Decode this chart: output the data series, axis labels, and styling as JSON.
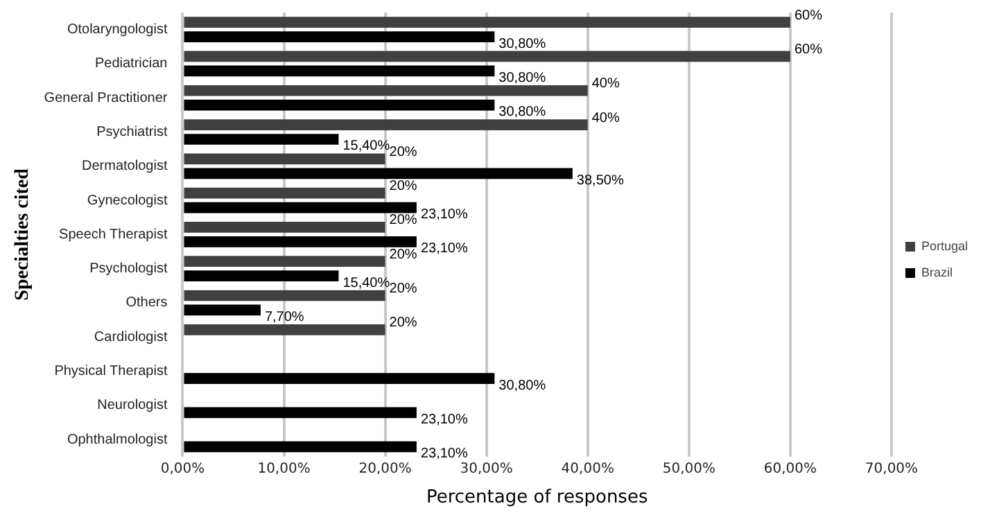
{
  "chart_data": {
    "type": "bar",
    "orientation": "horizontal",
    "xlabel": "Percentage of responses",
    "ylabel": "Specialties cited",
    "categories": [
      "Otolaryngologist",
      "Pediatrician",
      "General Practitioner",
      "Psychiatrist",
      "Dermatologist",
      "Gynecologist",
      "Speech Therapist",
      "Psychologist",
      "Others",
      "Cardiologist",
      "Physical Therapist",
      "Neurologist",
      "Ophthalmologist"
    ],
    "series": [
      {
        "name": "Portugal",
        "color": "#404040",
        "values": [
          60,
          60,
          40,
          40,
          20,
          20,
          20,
          20,
          20,
          20,
          null,
          null,
          null
        ],
        "value_labels": [
          "60%",
          "60%",
          "40%",
          "40%",
          "20%",
          "20%",
          "20%",
          "20%",
          "20%",
          "20%",
          null,
          null,
          null
        ]
      },
      {
        "name": "Brazil",
        "color": "#000000",
        "values": [
          30.8,
          30.8,
          30.8,
          15.4,
          38.5,
          23.1,
          23.1,
          15.4,
          7.7,
          null,
          30.8,
          23.1,
          23.1
        ],
        "value_labels": [
          "30,80%",
          "30,80%",
          "30,80%",
          "15,40%",
          "38,50%",
          "23,10%",
          "23,10%",
          "15,40%",
          "7,70%",
          null,
          "30,80%",
          "23,10%",
          "23,10%"
        ]
      }
    ],
    "xlim": [
      0,
      70
    ],
    "xticks": [
      {
        "value": 0,
        "label": "0,00%"
      },
      {
        "value": 10,
        "label": "10,00%"
      },
      {
        "value": 20,
        "label": "20,00%"
      },
      {
        "value": 30,
        "label": "30,00%"
      },
      {
        "value": 40,
        "label": "40,00%"
      },
      {
        "value": 50,
        "label": "50,00%"
      },
      {
        "value": 60,
        "label": "60,00%"
      },
      {
        "value": 70,
        "label": "70,00%"
      }
    ],
    "grid": "x",
    "legend": "right"
  }
}
